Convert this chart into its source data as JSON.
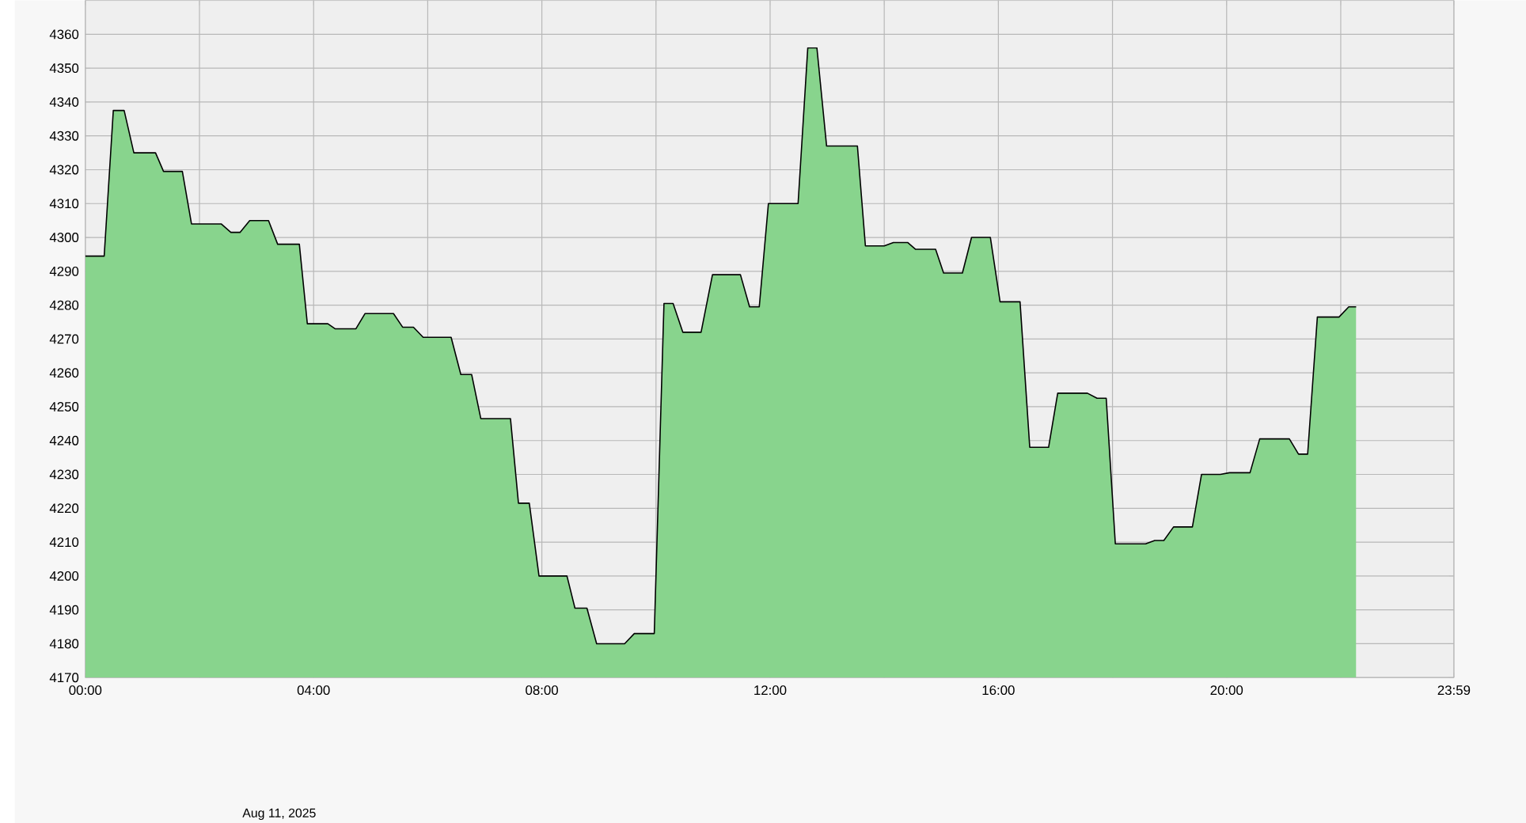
{
  "chart_data": {
    "type": "area",
    "x": [
      0,
      0.33,
      0.49,
      0.68,
      0.85,
      1.23,
      1.37,
      1.7,
      1.86,
      2.38,
      2.55,
      2.71,
      2.88,
      3.21,
      3.37,
      3.75,
      3.89,
      4.25,
      4.38,
      4.74,
      4.9,
      5.4,
      5.56,
      5.75,
      5.92,
      6.41,
      6.58,
      6.77,
      6.93,
      7.45,
      7.59,
      7.78,
      7.95,
      8.44,
      8.58,
      8.79,
      8.96,
      9.45,
      9.62,
      9.97,
      10.14,
      10.3,
      10.47,
      10.79,
      10.99,
      11.48,
      11.64,
      11.81,
      11.97,
      12.49,
      12.66,
      12.82,
      12.99,
      13.53,
      13.67,
      14.0,
      14.16,
      14.41,
      14.55,
      14.9,
      15.04,
      15.37,
      15.53,
      15.86,
      16.03,
      16.38,
      16.55,
      16.88,
      17.04,
      17.56,
      17.73,
      17.89,
      18.05,
      18.58,
      18.74,
      18.9,
      19.07,
      19.4,
      19.56,
      19.89,
      20.05,
      20.41,
      20.58,
      21.1,
      21.26,
      21.42,
      21.59,
      21.97,
      22.14,
      22.27
    ],
    "values": [
      4294.5,
      4294.5,
      4337.5,
      4337.5,
      4325,
      4325,
      4319.5,
      4319.5,
      4304,
      4304,
      4301.5,
      4301.5,
      4305,
      4305,
      4298,
      4298,
      4274.5,
      4274.5,
      4273,
      4273,
      4277.5,
      4277.5,
      4273.5,
      4273.5,
      4270.5,
      4270.5,
      4259.5,
      4259.5,
      4246.5,
      4246.5,
      4221.5,
      4221.5,
      4200,
      4200,
      4190.5,
      4190.5,
      4180,
      4180,
      4183,
      4183,
      4280.5,
      4280.5,
      4272,
      4272,
      4289,
      4289,
      4279.5,
      4279.5,
      4310,
      4310,
      4356,
      4356,
      4327,
      4327,
      4297.5,
      4297.5,
      4298.5,
      4298.5,
      4296.5,
      4296.5,
      4289.5,
      4289.5,
      4300,
      4300,
      4281,
      4281,
      4238,
      4238,
      4254,
      4254,
      4252.5,
      4252.5,
      4209.5,
      4209.5,
      4210.5,
      4210.5,
      4214.5,
      4214.5,
      4230,
      4230,
      4230.5,
      4230.5,
      4240.5,
      4240.5,
      4236,
      4236,
      4276.5,
      4276.5,
      4279.5,
      4279.5
    ],
    "color": "#88d48d",
    "xlim": [
      0,
      23.983
    ],
    "ylim": [
      4170,
      4370
    ],
    "xticks": [
      {
        "value": 0,
        "label": "00:00"
      },
      {
        "value": 2,
        "label": null
      },
      {
        "value": 4,
        "label": "04:00"
      },
      {
        "value": 6,
        "label": null
      },
      {
        "value": 8,
        "label": "08:00"
      },
      {
        "value": 10,
        "label": null
      },
      {
        "value": 12,
        "label": "12:00"
      },
      {
        "value": 14,
        "label": null
      },
      {
        "value": 16,
        "label": "16:00"
      },
      {
        "value": 18,
        "label": null
      },
      {
        "value": 20,
        "label": "20:00"
      },
      {
        "value": 22,
        "label": null
      },
      {
        "value": 23.983,
        "label": "23:59"
      }
    ],
    "yticks": [
      4170,
      4180,
      4190,
      4200,
      4210,
      4220,
      4230,
      4240,
      4250,
      4260,
      4270,
      4280,
      4290,
      4300,
      4310,
      4320,
      4330,
      4340,
      4350,
      4360
    ],
    "grid": true,
    "annotations": [
      "Aug 11, 2025"
    ]
  }
}
